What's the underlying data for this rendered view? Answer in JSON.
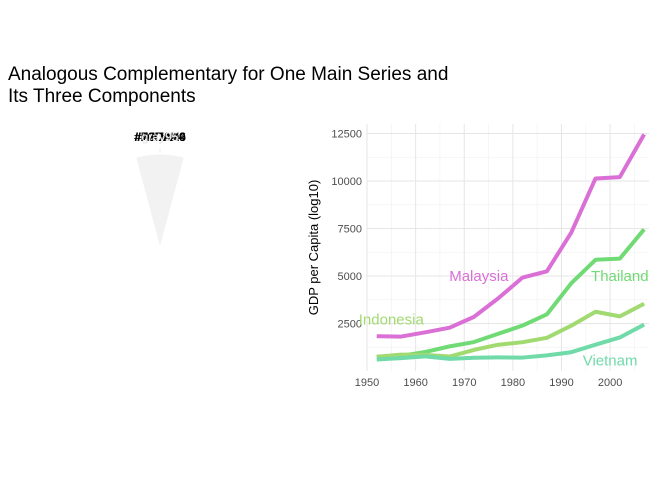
{
  "title": "Analogous Complementary for One Main Series and\nIts Three Components",
  "chart_data": [
    {
      "type": "pie",
      "slices": [
        {
          "label": "#DA70D6",
          "color": "#DA70D6",
          "value": 1
        },
        {
          "label": "gray95",
          "color": "#F2F2F2",
          "value": 1
        },
        {
          "label": "gray95",
          "color": "#F2F2F2",
          "value": 1
        },
        {
          "label": "gray95",
          "color": "#F2F2F2",
          "value": 1
        },
        {
          "label": "gray95",
          "color": "#F2F2F2",
          "value": 1
        },
        {
          "label": "#A1DA70",
          "color": "#A1DA70",
          "value": 1
        },
        {
          "label": "#70DA74",
          "color": "#70DA74",
          "value": 1
        },
        {
          "label": "#70DAA9",
          "color": "#70DAA9",
          "value": 1
        },
        {
          "label": "gray95",
          "color": "#F2F2F2",
          "value": 1
        },
        {
          "label": "gray95",
          "color": "#F2F2F2",
          "value": 1
        },
        {
          "label": "gray95",
          "color": "#F2F2F2",
          "value": 1
        },
        {
          "label": "gray95",
          "color": "#F2F2F2",
          "value": 1
        }
      ]
    },
    {
      "type": "line",
      "ylabel": "GDP per Capita (log10)",
      "xlim": [
        1950,
        2008
      ],
      "ylim": [
        0,
        13000
      ],
      "xticks": [
        1950,
        1960,
        1970,
        1980,
        1990,
        2000
      ],
      "yticks": [
        2500,
        5000,
        7500,
        10000,
        12500
      ],
      "x": [
        1952,
        1957,
        1962,
        1967,
        1972,
        1977,
        1982,
        1987,
        1992,
        1997,
        2002,
        2007
      ],
      "series": [
        {
          "name": "Malaysia",
          "color": "#DA70D6",
          "values": [
            1831,
            1811,
            2036,
            2278,
            2849,
            3828,
            4920,
            5249,
            7277,
            10132,
            10207,
            12452
          ],
          "label_at": [
            1973,
            5000
          ]
        },
        {
          "name": "Thailand",
          "color": "#70DA74",
          "values": [
            757,
            794,
            1002,
            1296,
            1524,
            1961,
            2393,
            2982,
            4616,
            5853,
            5913,
            7458
          ],
          "label_at": [
            2002,
            5000
          ]
        },
        {
          "name": "Indonesia",
          "color": "#A1DA70",
          "values": [
            750,
            859,
            849,
            763,
            1111,
            1383,
            1517,
            1748,
            2383,
            3119,
            2874,
            3541
          ],
          "label_at": [
            1955,
            2700
          ]
        },
        {
          "name": "Vietnam",
          "color": "#70DAA9",
          "values": [
            605,
            676,
            772,
            637,
            700,
            714,
            707,
            821,
            989,
            1386,
            1764,
            2442
          ],
          "label_at": [
            2000,
            560
          ]
        }
      ]
    }
  ]
}
